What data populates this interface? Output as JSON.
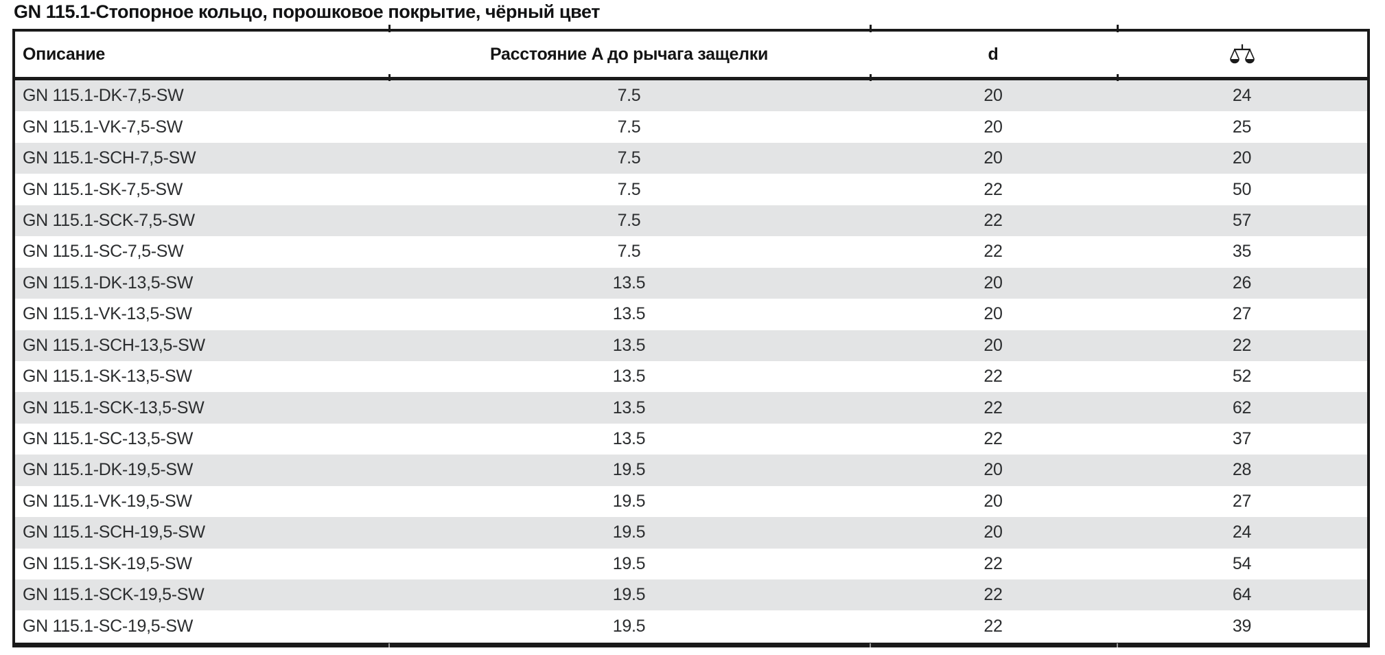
{
  "title": "GN 115.1-Стопорное кольцо, порошковое покрытие, чёрный цвет",
  "table": {
    "headers": {
      "description": "Описание",
      "distance": "Расстояние A до рычага защелки",
      "d": "d",
      "weight_icon": "balance-scale-icon"
    },
    "rows": [
      {
        "description": "GN 115.1-DK-7,5-SW",
        "distance": "7.5",
        "d": "20",
        "weight": "24"
      },
      {
        "description": "GN 115.1-VK-7,5-SW",
        "distance": "7.5",
        "d": "20",
        "weight": "25"
      },
      {
        "description": "GN 115.1-SCH-7,5-SW",
        "distance": "7.5",
        "d": "20",
        "weight": "20"
      },
      {
        "description": "GN 115.1-SK-7,5-SW",
        "distance": "7.5",
        "d": "22",
        "weight": "50"
      },
      {
        "description": "GN 115.1-SCK-7,5-SW",
        "distance": "7.5",
        "d": "22",
        "weight": "57"
      },
      {
        "description": "GN 115.1-SC-7,5-SW",
        "distance": "7.5",
        "d": "22",
        "weight": "35"
      },
      {
        "description": "GN 115.1-DK-13,5-SW",
        "distance": "13.5",
        "d": "20",
        "weight": "26"
      },
      {
        "description": "GN 115.1-VK-13,5-SW",
        "distance": "13.5",
        "d": "20",
        "weight": "27"
      },
      {
        "description": "GN 115.1-SCH-13,5-SW",
        "distance": "13.5",
        "d": "20",
        "weight": "22"
      },
      {
        "description": "GN 115.1-SK-13,5-SW",
        "distance": "13.5",
        "d": "22",
        "weight": "52"
      },
      {
        "description": "GN 115.1-SCK-13,5-SW",
        "distance": "13.5",
        "d": "22",
        "weight": "62"
      },
      {
        "description": "GN 115.1-SC-13,5-SW",
        "distance": "13.5",
        "d": "22",
        "weight": "37"
      },
      {
        "description": "GN 115.1-DK-19,5-SW",
        "distance": "19.5",
        "d": "20",
        "weight": "28"
      },
      {
        "description": "GN 115.1-VK-19,5-SW",
        "distance": "19.5",
        "d": "20",
        "weight": "27"
      },
      {
        "description": "GN 115.1-SCH-19,5-SW",
        "distance": "19.5",
        "d": "20",
        "weight": "24"
      },
      {
        "description": "GN 115.1-SK-19,5-SW",
        "distance": "19.5",
        "d": "22",
        "weight": "54"
      },
      {
        "description": "GN 115.1-SCK-19,5-SW",
        "distance": "19.5",
        "d": "22",
        "weight": "64"
      },
      {
        "description": "GN 115.1-SC-19,5-SW",
        "distance": "19.5",
        "d": "22",
        "weight": "39"
      }
    ]
  },
  "colors": {
    "row_alt": "#e3e4e5",
    "border": "#1a1a1a",
    "text": "#2b2d2f",
    "header_text": "#141414"
  }
}
